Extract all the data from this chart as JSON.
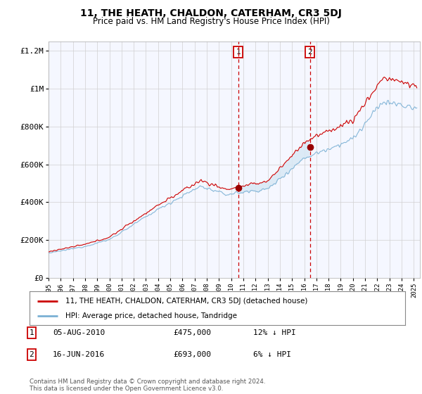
{
  "title": "11, THE HEATH, CHALDON, CATERHAM, CR3 5DJ",
  "subtitle": "Price paid vs. HM Land Registry's House Price Index (HPI)",
  "legend_label_red": "11, THE HEATH, CHALDON, CATERHAM, CR3 5DJ (detached house)",
  "legend_label_blue": "HPI: Average price, detached house, Tandridge",
  "annotation1_label": "1",
  "annotation1_date": "05-AUG-2010",
  "annotation1_price": "£475,000",
  "annotation1_hpi": "12% ↓ HPI",
  "annotation2_label": "2",
  "annotation2_date": "16-JUN-2016",
  "annotation2_price": "£693,000",
  "annotation2_hpi": "6% ↓ HPI",
  "footnote": "Contains HM Land Registry data © Crown copyright and database right 2024.\nThis data is licensed under the Open Government Licence v3.0.",
  "background_color": "#ffffff",
  "plot_background_color": "#f5f7ff",
  "red_line_color": "#cc0000",
  "blue_line_color": "#7ab0d4",
  "fill_color": "#d8e8f5",
  "vline_color": "#cc0000",
  "marker_color": "#990000",
  "ylim": [
    0,
    1250000
  ],
  "yticks": [
    0,
    200000,
    400000,
    600000,
    800000,
    1000000,
    1200000
  ],
  "ytick_labels": [
    "£0",
    "£200K",
    "£400K",
    "£600K",
    "£800K",
    "£1M",
    "£1.2M"
  ],
  "purchase1_x": 2010.58,
  "purchase1_y": 475000,
  "purchase2_x": 2016.46,
  "purchase2_y": 693000,
  "xmin": 1995,
  "xmax": 2025.5
}
